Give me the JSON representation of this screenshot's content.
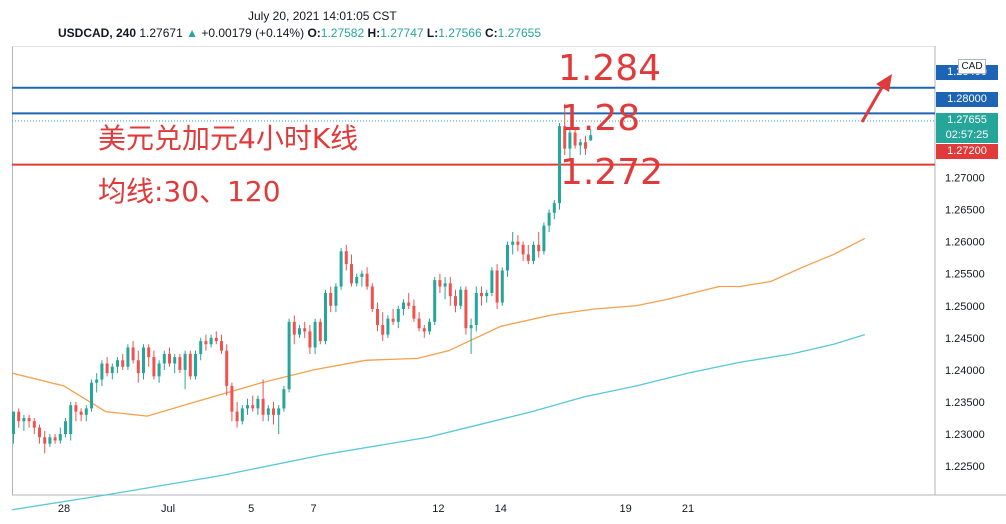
{
  "header": {
    "datetime": "July 20, 2021 14:01:05 CST",
    "symbol": "USDCAD, 240",
    "last": "1.27671",
    "change_arrow": "▲",
    "change": "+0.00179 (+0.14%)",
    "o_label": "O:",
    "o_value": "1.27582",
    "h_label": "H:",
    "h_value": "1.27747",
    "l_label": "L:",
    "l_value": "1.27566",
    "c_label": "C:",
    "c_value": "1.27655"
  },
  "annotations": {
    "price_1": "1.284",
    "price_2": "1.28",
    "price_3": "1.272",
    "title": "美元兑加元4小时K线",
    "ma": "均线:30、120"
  },
  "axis": {
    "currency": "CAD",
    "current_price": "1.27655",
    "countdown": "02:57:25",
    "tag_1284": "1.28400",
    "tag_128": "1.28000",
    "tag_1272": "1.27200"
  },
  "colors": {
    "up": "#26a69a",
    "down": "#ef5350",
    "ma30": "#f5a04b",
    "ma120": "#56c8d8",
    "line_blue": "#1e64b4",
    "line_red": "#e03a3a",
    "annotation": "#e03a3a"
  },
  "chart_data": {
    "type": "candlestick",
    "ylim": [
      1.2205,
      1.2905
    ],
    "y_ticks": [
      1.225,
      1.23,
      1.235,
      1.24,
      1.245,
      1.25,
      1.255,
      1.26,
      1.265,
      1.27
    ],
    "y_tick_labels": [
      "1.22500",
      "1.23000",
      "1.23500",
      "1.24000",
      "1.24500",
      "1.25000",
      "1.25500",
      "1.26000",
      "1.26500",
      "1.27000"
    ],
    "x_tick_labels": [
      {
        "label": "28",
        "bar": 10
      },
      {
        "label": "Jul",
        "bar": 30
      },
      {
        "label": "5",
        "bar": 46
      },
      {
        "label": "7",
        "bar": 58
      },
      {
        "label": "12",
        "bar": 82
      },
      {
        "label": "14",
        "bar": 94
      },
      {
        "label": "19",
        "bar": 118
      },
      {
        "label": "21",
        "bar": 130
      }
    ],
    "horizontal_lines": [
      {
        "price": 1.284,
        "color": "line_blue"
      },
      {
        "price": 1.28,
        "color": "line_blue"
      },
      {
        "price": 1.272,
        "color": "line_red"
      }
    ],
    "ohlc": [
      [
        1.23,
        1.2335,
        1.2285,
        1.2335
      ],
      [
        1.2335,
        1.234,
        1.231,
        1.232
      ],
      [
        1.232,
        1.233,
        1.2305,
        1.2325
      ],
      [
        1.2325,
        1.233,
        1.231,
        1.232
      ],
      [
        1.232,
        1.2325,
        1.23,
        1.231
      ],
      [
        1.231,
        1.2315,
        1.2285,
        1.2295
      ],
      [
        1.2295,
        1.2305,
        1.227,
        1.2285
      ],
      [
        1.2285,
        1.23,
        1.228,
        1.2295
      ],
      [
        1.2295,
        1.23,
        1.2285,
        1.229
      ],
      [
        1.229,
        1.231,
        1.2285,
        1.23
      ],
      [
        1.23,
        1.2325,
        1.2295,
        1.232
      ],
      [
        1.23,
        1.235,
        1.229,
        1.2345
      ],
      [
        1.2345,
        1.235,
        1.232,
        1.2335
      ],
      [
        1.2335,
        1.234,
        1.232,
        1.233
      ],
      [
        1.233,
        1.2345,
        1.232,
        1.234
      ],
      [
        1.234,
        1.2385,
        1.2335,
        1.238
      ],
      [
        1.238,
        1.2395,
        1.2365,
        1.2385
      ],
      [
        1.2385,
        1.2415,
        1.2375,
        1.241
      ],
      [
        1.241,
        1.242,
        1.239,
        1.2395
      ],
      [
        1.2395,
        1.241,
        1.2385,
        1.2405
      ],
      [
        1.2405,
        1.242,
        1.2395,
        1.2415
      ],
      [
        1.2415,
        1.2425,
        1.24,
        1.2405
      ],
      [
        1.2405,
        1.244,
        1.24,
        1.2435
      ],
      [
        1.2435,
        1.2445,
        1.241,
        1.2415
      ],
      [
        1.2415,
        1.243,
        1.238,
        1.2395
      ],
      [
        1.2395,
        1.244,
        1.2385,
        1.2435
      ],
      [
        1.2435,
        1.244,
        1.2405,
        1.242
      ],
      [
        1.242,
        1.243,
        1.2385,
        1.239
      ],
      [
        1.239,
        1.2415,
        1.238,
        1.241
      ],
      [
        1.241,
        1.243,
        1.24,
        1.2425
      ],
      [
        1.2425,
        1.2435,
        1.2405,
        1.241
      ],
      [
        1.241,
        1.2425,
        1.2395,
        1.242
      ],
      [
        1.242,
        1.2425,
        1.2395,
        1.24
      ],
      [
        1.24,
        1.243,
        1.237,
        1.2425
      ],
      [
        1.2425,
        1.243,
        1.2385,
        1.239
      ],
      [
        1.239,
        1.243,
        1.2385,
        1.2425
      ],
      [
        1.2425,
        1.245,
        1.2415,
        1.2445
      ],
      [
        1.2445,
        1.2455,
        1.243,
        1.244
      ],
      [
        1.244,
        1.2455,
        1.2435,
        1.245
      ],
      [
        1.245,
        1.246,
        1.244,
        1.2445
      ],
      [
        1.2445,
        1.2455,
        1.2425,
        1.243
      ],
      [
        1.243,
        1.244,
        1.236,
        1.2375
      ],
      [
        1.2375,
        1.238,
        1.232,
        1.2335
      ],
      [
        1.2335,
        1.235,
        1.231,
        1.232
      ],
      [
        1.232,
        1.2345,
        1.2315,
        1.234
      ],
      [
        1.234,
        1.2355,
        1.233,
        1.2345
      ],
      [
        1.2345,
        1.236,
        1.2335,
        1.234
      ],
      [
        1.234,
        1.236,
        1.233,
        1.2355
      ],
      [
        1.2355,
        1.2385,
        1.232,
        1.233
      ],
      [
        1.233,
        1.2345,
        1.232,
        1.234
      ],
      [
        1.234,
        1.235,
        1.2315,
        1.233
      ],
      [
        1.233,
        1.2345,
        1.23,
        1.234
      ],
      [
        1.234,
        1.2375,
        1.2335,
        1.237
      ],
      [
        1.237,
        1.248,
        1.2365,
        1.2475
      ],
      [
        1.2475,
        1.2485,
        1.244,
        1.2455
      ],
      [
        1.2455,
        1.247,
        1.245,
        1.2465
      ],
      [
        1.2465,
        1.2475,
        1.245,
        1.246
      ],
      [
        1.246,
        1.247,
        1.2425,
        1.2435
      ],
      [
        1.2435,
        1.248,
        1.2425,
        1.2475
      ],
      [
        1.2475,
        1.248,
        1.244,
        1.2445
      ],
      [
        1.2445,
        1.2525,
        1.244,
        1.252
      ],
      [
        1.252,
        1.253,
        1.249,
        1.25
      ],
      [
        1.25,
        1.2535,
        1.249,
        1.253
      ],
      [
        1.253,
        1.259,
        1.2525,
        1.2585
      ],
      [
        1.2585,
        1.2595,
        1.2555,
        1.2565
      ],
      [
        1.2565,
        1.258,
        1.253,
        1.2535
      ],
      [
        1.2535,
        1.255,
        1.253,
        1.2545
      ],
      [
        1.2545,
        1.2555,
        1.253,
        1.255
      ],
      [
        1.255,
        1.256,
        1.2525,
        1.253
      ],
      [
        1.253,
        1.2535,
        1.249,
        1.2495
      ],
      [
        1.2495,
        1.2505,
        1.246,
        1.247
      ],
      [
        1.247,
        1.249,
        1.2445,
        1.2455
      ],
      [
        1.2455,
        1.2485,
        1.245,
        1.248
      ],
      [
        1.248,
        1.2495,
        1.247,
        1.2475
      ],
      [
        1.2475,
        1.25,
        1.2465,
        1.2495
      ],
      [
        1.2495,
        1.251,
        1.2485,
        1.2505
      ],
      [
        1.2505,
        1.252,
        1.2495,
        1.25
      ],
      [
        1.25,
        1.251,
        1.2475,
        1.248
      ],
      [
        1.248,
        1.249,
        1.246,
        1.2465
      ],
      [
        1.2465,
        1.247,
        1.245,
        1.246
      ],
      [
        1.246,
        1.248,
        1.2455,
        1.2475
      ],
      [
        1.2475,
        1.2545,
        1.247,
        1.254
      ],
      [
        1.254,
        1.255,
        1.252,
        1.253
      ],
      [
        1.253,
        1.2545,
        1.251,
        1.2535
      ],
      [
        1.2535,
        1.2545,
        1.25,
        1.2515
      ],
      [
        1.2515,
        1.2525,
        1.249,
        1.25
      ],
      [
        1.25,
        1.253,
        1.2495,
        1.2525
      ],
      [
        1.2525,
        1.253,
        1.2455,
        1.2465
      ],
      [
        1.2465,
        1.248,
        1.2425,
        1.247
      ],
      [
        1.247,
        1.253,
        1.246,
        1.252
      ],
      [
        1.252,
        1.253,
        1.25,
        1.2515
      ],
      [
        1.2515,
        1.2525,
        1.2505,
        1.252
      ],
      [
        1.252,
        1.256,
        1.2515,
        1.2555
      ],
      [
        1.2555,
        1.2565,
        1.2495,
        1.2505
      ],
      [
        1.2505,
        1.256,
        1.25,
        1.2555
      ],
      [
        1.2555,
        1.26,
        1.2545,
        1.2595
      ],
      [
        1.2595,
        1.2615,
        1.258,
        1.26
      ],
      [
        1.26,
        1.261,
        1.2585,
        1.2595
      ],
      [
        1.2595,
        1.26,
        1.257,
        1.258
      ],
      [
        1.258,
        1.2595,
        1.2565,
        1.257
      ],
      [
        1.257,
        1.26,
        1.2565,
        1.2595
      ],
      [
        1.2595,
        1.2615,
        1.2575,
        1.2585
      ],
      [
        1.2585,
        1.263,
        1.258,
        1.2625
      ],
      [
        1.2625,
        1.265,
        1.2615,
        1.2645
      ],
      [
        1.2645,
        1.2665,
        1.2635,
        1.266
      ],
      [
        1.266,
        1.2785,
        1.265,
        1.278
      ],
      [
        1.278,
        1.2815,
        1.2735,
        1.2745
      ],
      [
        1.2745,
        1.2775,
        1.273,
        1.277
      ],
      [
        1.277,
        1.2775,
        1.2745,
        1.275
      ],
      [
        1.275,
        1.276,
        1.2735,
        1.2755
      ],
      [
        1.2755,
        1.2765,
        1.2735,
        1.2745
      ],
      [
        1.2758,
        1.2775,
        1.2757,
        1.2766
      ]
    ],
    "ma30": [
      [
        0,
        1.2395
      ],
      [
        10,
        1.2375
      ],
      [
        18,
        1.2335
      ],
      [
        26,
        1.2328
      ],
      [
        36,
        1.2352
      ],
      [
        48,
        1.238
      ],
      [
        58,
        1.24
      ],
      [
        68,
        1.2415
      ],
      [
        78,
        1.2418
      ],
      [
        84,
        1.243
      ],
      [
        94,
        1.2468
      ],
      [
        104,
        1.2486
      ],
      [
        112,
        1.2495
      ],
      [
        120,
        1.25
      ],
      [
        126,
        1.251
      ],
      [
        136,
        1.253
      ],
      [
        140,
        1.253
      ],
      [
        146,
        1.2538
      ],
      [
        152,
        1.256
      ],
      [
        158,
        1.258
      ],
      [
        164,
        1.2605
      ]
    ],
    "ma120": [
      [
        0,
        1.2182
      ],
      [
        18,
        1.2205
      ],
      [
        40,
        1.2235
      ],
      [
        60,
        1.2268
      ],
      [
        80,
        1.2295
      ],
      [
        90,
        1.2315
      ],
      [
        100,
        1.2335
      ],
      [
        110,
        1.2358
      ],
      [
        120,
        1.2375
      ],
      [
        130,
        1.2395
      ],
      [
        140,
        1.2412
      ],
      [
        150,
        1.2425
      ],
      [
        158,
        1.244
      ],
      [
        164,
        1.2455
      ]
    ]
  }
}
